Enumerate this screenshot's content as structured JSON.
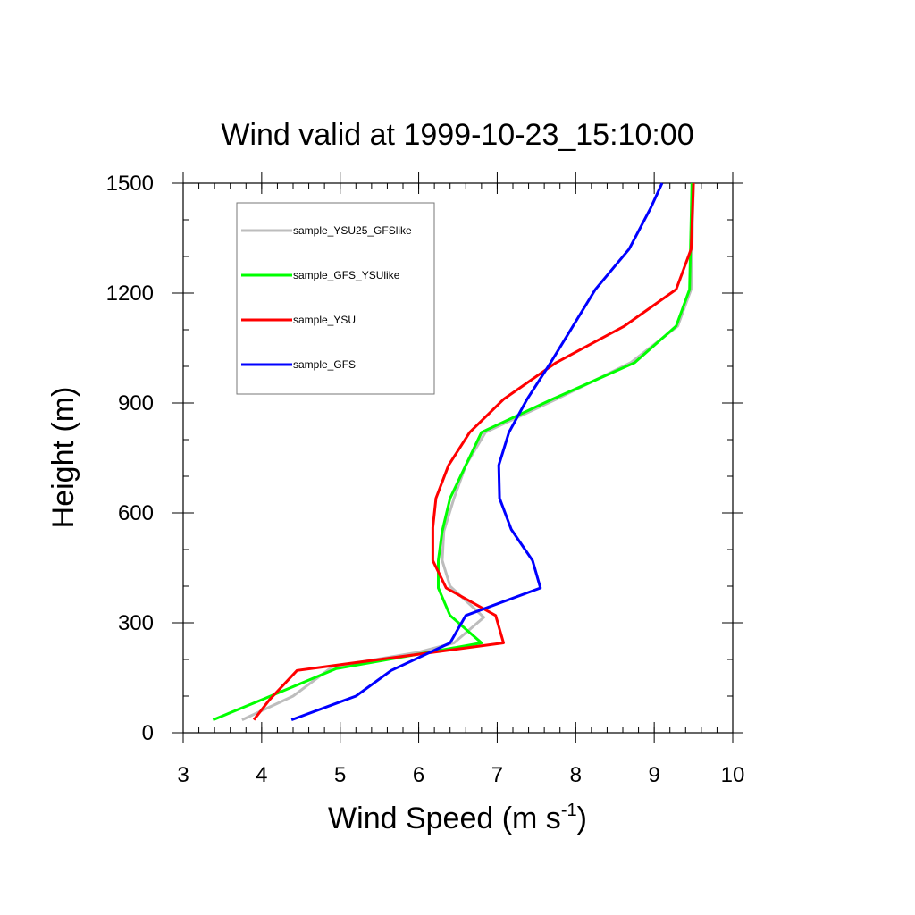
{
  "chart_data": {
    "type": "line",
    "title": "Wind valid at 1999-10-23_15:10:00",
    "xlabel": "Wind Speed (m s",
    "xlabel_sup": "-1",
    "xlabel_close": ")",
    "ylabel": "Height (m)",
    "xlim": [
      3,
      10
    ],
    "ylim": [
      0,
      1500
    ],
    "x_ticks": [
      3,
      4,
      5,
      6,
      7,
      8,
      9,
      10
    ],
    "y_ticks": [
      0,
      300,
      600,
      900,
      1200,
      1500
    ],
    "legend_position": "top-left",
    "series": [
      {
        "name": "sample_YSU25_GFSlike",
        "color": "#bdbdbd",
        "x": [
          3.75,
          4.4,
          4.9,
          6.0,
          6.45,
          6.83,
          6.4,
          6.3,
          6.32,
          6.45,
          6.6,
          6.85,
          7.75,
          8.7,
          9.3,
          9.47,
          9.5
        ],
        "y": [
          35,
          100,
          180,
          220,
          245,
          315,
          400,
          470,
          550,
          640,
          730,
          820,
          910,
          1010,
          1110,
          1210,
          1500
        ]
      },
      {
        "name": "sample_GFS_YSUlike",
        "color": "#00ff00",
        "x": [
          3.38,
          4.0,
          4.95,
          6.8,
          6.4,
          6.25,
          6.25,
          6.3,
          6.4,
          6.6,
          6.8,
          7.7,
          8.75,
          9.28,
          9.45,
          9.48
        ],
        "y": [
          35,
          90,
          175,
          245,
          320,
          395,
          470,
          550,
          640,
          730,
          820,
          910,
          1010,
          1110,
          1210,
          1500
        ]
      },
      {
        "name": "sample_YSU",
        "color": "#ff0000",
        "x": [
          3.9,
          4.1,
          4.45,
          7.08,
          6.98,
          6.35,
          6.18,
          6.18,
          6.22,
          6.38,
          6.65,
          7.08,
          7.75,
          8.62,
          9.28,
          9.47,
          9.5
        ],
        "y": [
          35,
          90,
          170,
          245,
          320,
          395,
          470,
          560,
          640,
          730,
          820,
          910,
          1010,
          1110,
          1210,
          1320,
          1500
        ]
      },
      {
        "name": "sample_GFS",
        "color": "#0000ff",
        "x": [
          4.38,
          5.2,
          5.65,
          6.4,
          6.6,
          7.55,
          7.45,
          7.18,
          7.03,
          7.02,
          7.15,
          7.38,
          7.68,
          8.25,
          8.68,
          8.95,
          9.1
        ],
        "y": [
          35,
          100,
          170,
          245,
          320,
          395,
          470,
          555,
          640,
          730,
          820,
          910,
          1010,
          1210,
          1320,
          1430,
          1500
        ]
      }
    ]
  }
}
